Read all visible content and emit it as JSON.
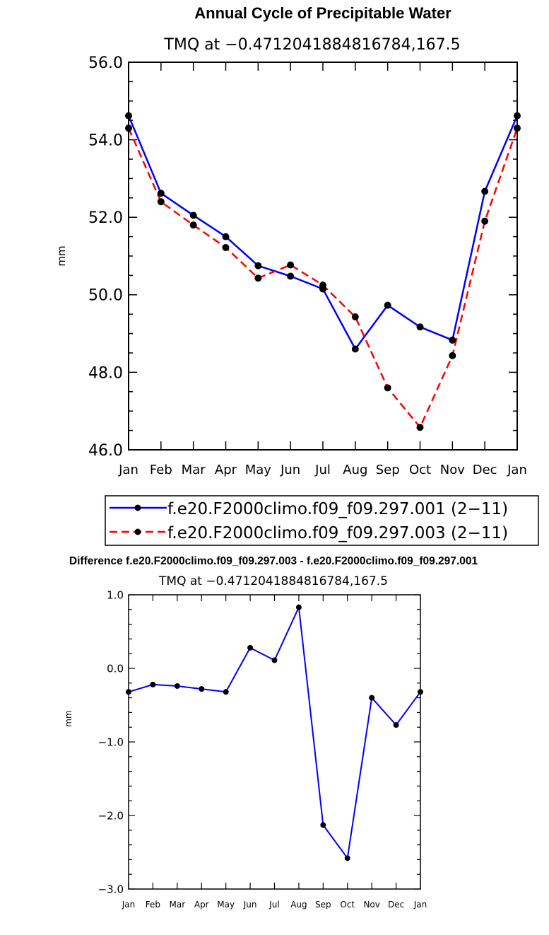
{
  "chart_data": [
    {
      "type": "line",
      "title": "Annual Cycle of Precipitable Water",
      "subtitle": "TMQ at −0.4712041884816784,167.5",
      "xlabel": "",
      "ylabel": "mm",
      "categories": [
        "Jan",
        "Feb",
        "Mar",
        "Apr",
        "May",
        "Jun",
        "Jul",
        "Aug",
        "Sep",
        "Oct",
        "Nov",
        "Dec",
        "Jan"
      ],
      "ylim": [
        46.0,
        56.0
      ],
      "yticks": [
        46.0,
        48.0,
        50.0,
        52.0,
        54.0,
        56.0
      ],
      "ytick_labels": [
        "46.0",
        "48.0",
        "50.0",
        "52.0",
        "54.0",
        "56.0"
      ],
      "grid": false,
      "legend_position": "bottom",
      "series": [
        {
          "name": "f.e20.F2000climo.f09_f09.297.001 (2−11)",
          "color": "#0000ff",
          "dash": "solid",
          "values": [
            54.62,
            52.62,
            52.05,
            51.5,
            50.75,
            50.48,
            50.15,
            48.6,
            49.73,
            49.17,
            48.83,
            52.67,
            54.62
          ]
        },
        {
          "name": "f.e20.F2000climo.f09_f09.297.003 (2−11)",
          "color": "#ff0000",
          "dash": "dashed",
          "values": [
            54.3,
            52.4,
            51.8,
            51.22,
            50.43,
            50.77,
            50.25,
            49.43,
            47.6,
            46.58,
            48.43,
            51.9,
            54.3
          ]
        }
      ]
    },
    {
      "type": "line",
      "title": "Difference f.e20.F2000climo.f09_f09.297.003 - f.e20.F2000climo.f09_f09.297.001",
      "subtitle": "TMQ at −0.4712041884816784,167.5",
      "xlabel": "",
      "ylabel": "mm",
      "categories": [
        "Jan",
        "Feb",
        "Mar",
        "Apr",
        "May",
        "Jun",
        "Jul",
        "Aug",
        "Sep",
        "Oct",
        "Nov",
        "Dec",
        "Jan"
      ],
      "ylim": [
        -3.0,
        1.0
      ],
      "yticks": [
        -3.0,
        -2.0,
        -1.0,
        0.0,
        1.0
      ],
      "ytick_labels": [
        "−3.0",
        "−2.0",
        "−1.0",
        "0.0",
        "1.0"
      ],
      "grid": false,
      "series": [
        {
          "name": "Difference",
          "color": "#0000ff",
          "dash": "solid",
          "values": [
            -0.32,
            -0.22,
            -0.24,
            -0.28,
            -0.32,
            0.28,
            0.11,
            0.83,
            -2.13,
            -2.58,
            -0.4,
            -0.77,
            -0.32
          ]
        }
      ]
    }
  ]
}
